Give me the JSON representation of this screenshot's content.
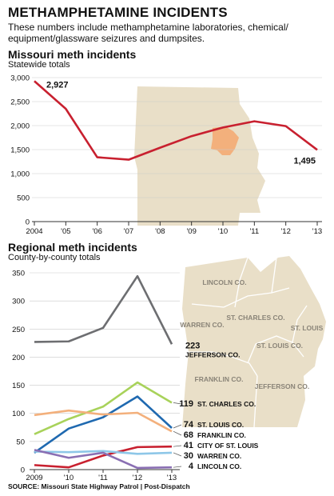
{
  "header": {
    "title": "METHAMPHETAMINE INCIDENTS",
    "subtitle": "These numbers include methamphetamine laboratories, chemical/ equipment/glassware seizures and dumpsites."
  },
  "chart_data": [
    {
      "type": "line",
      "title": "Missouri meth incidents",
      "subtitle": "Statewide totals",
      "x": [
        2004,
        2005,
        2006,
        2007,
        2008,
        2009,
        2010,
        2011,
        2012,
        2013
      ],
      "x_tick_labels": [
        "2004",
        "'05",
        "'06",
        "'07",
        "'08",
        "'09",
        "'10",
        "'11",
        "'12",
        "'13"
      ],
      "series": [
        {
          "values": [
            2927,
            2350,
            1340,
            1290,
            1540,
            1780,
            1960,
            2090,
            1990,
            1495
          ],
          "color": "#c8202f"
        }
      ],
      "data_labels": [
        {
          "x": 2004,
          "label": "2,927"
        },
        {
          "x": 2013,
          "label": "1,495"
        }
      ],
      "ylim": [
        0,
        3000
      ],
      "y_ticks": [
        0,
        500,
        1000,
        1500,
        2000,
        2500,
        3000
      ],
      "y_tick_labels": [
        "0",
        "500",
        "1,000",
        "1,500",
        "2,000",
        "2,500",
        "3,000"
      ],
      "grid": true
    },
    {
      "type": "line",
      "title": "Regional meth incidents",
      "subtitle": "County-by-county totals",
      "x": [
        2009,
        2010,
        2011,
        2012,
        2013
      ],
      "x_tick_labels": [
        "2009",
        "'10",
        "'11",
        "'12",
        "'13"
      ],
      "series": [
        {
          "name": "JEFFERSON CO.",
          "values": [
            227,
            228,
            252,
            344,
            223
          ],
          "color": "#6d6e71"
        },
        {
          "name": "ST. CHARLES CO.",
          "values": [
            63,
            90,
            112,
            155,
            119
          ],
          "color": "#a8d25a"
        },
        {
          "name": "ST. LOUIS CO.",
          "values": [
            30,
            73,
            93,
            130,
            74
          ],
          "color": "#1f69b0"
        },
        {
          "name": "FRANKLIN CO.",
          "values": [
            97,
            105,
            98,
            101,
            68
          ],
          "color": "#f3b07c"
        },
        {
          "name": "CITY OF ST. LOUIS",
          "values": [
            8,
            4,
            25,
            40,
            41
          ],
          "color": "#c8202f"
        },
        {
          "name": "WARREN CO.",
          "values": [
            32,
            31,
            33,
            28,
            30
          ],
          "color": "#8ec7e8"
        },
        {
          "name": "LINCOLN CO.",
          "values": [
            35,
            21,
            30,
            3,
            4
          ],
          "color": "#8a6fb3"
        }
      ],
      "ylim": [
        0,
        350
      ],
      "y_ticks": [
        0,
        50,
        100,
        150,
        200,
        250,
        300,
        350
      ],
      "grid": true
    }
  ],
  "map1": {
    "highlight_color": "#f3b07c",
    "land_color": "#e9dfc8"
  },
  "map2": {
    "land_color": "#e9dfc8",
    "labels": [
      "LINCOLN CO.",
      "ST. CHARLES CO.",
      "WARREN CO.",
      "ST. LOUIS",
      "ST. LOUIS CO.",
      "FRANKLIN CO.",
      "JEFFERSON CO."
    ]
  },
  "source": "SOURCE: Missouri State Highway Patrol | Post-Dispatch"
}
